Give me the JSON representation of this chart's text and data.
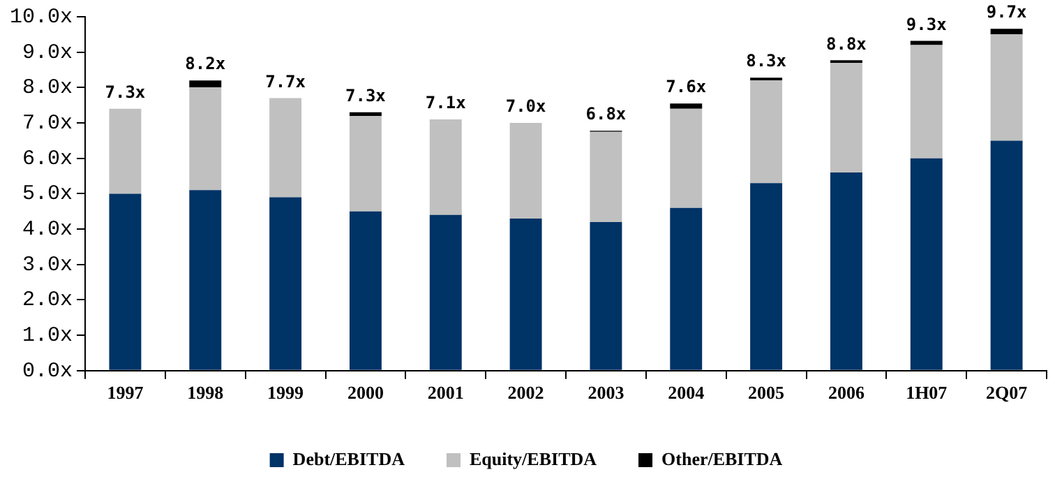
{
  "chart_data": {
    "type": "bar",
    "stacked": true,
    "categories": [
      "1997",
      "1998",
      "1999",
      "2000",
      "2001",
      "2002",
      "2003",
      "2004",
      "2005",
      "2006",
      "1H07",
      "2Q07"
    ],
    "series": [
      {
        "name": "Debt/EBITDA",
        "color": "#003366",
        "values": [
          5.0,
          5.1,
          4.9,
          4.5,
          4.4,
          4.3,
          4.2,
          4.6,
          5.3,
          5.6,
          6.0,
          6.5
        ]
      },
      {
        "name": "Equity/EBITDA",
        "color": "#c0c0c0",
        "values": [
          2.4,
          2.9,
          2.8,
          2.7,
          2.7,
          2.7,
          2.55,
          2.8,
          2.9,
          3.1,
          3.2,
          3.0
        ]
      },
      {
        "name": "Other/EBITDA",
        "color": "#000000",
        "values": [
          0,
          0.2,
          0,
          0.1,
          0,
          0,
          0.03,
          0.15,
          0.08,
          0.07,
          0.12,
          0.16
        ]
      }
    ],
    "totals": [
      "7.3x",
      "8.2x",
      "7.7x",
      "7.3x",
      "7.1x",
      "7.0x",
      "6.8x",
      "7.6x",
      "8.3x",
      "8.8x",
      "9.3x",
      "9.7x"
    ],
    "ylim": [
      0,
      10
    ],
    "yticks": [
      {
        "value": 0,
        "label": "0.0x"
      },
      {
        "value": 1,
        "label": "1.0x"
      },
      {
        "value": 2,
        "label": "2.0x"
      },
      {
        "value": 3,
        "label": "3.0x"
      },
      {
        "value": 4,
        "label": "4.0x"
      },
      {
        "value": 5,
        "label": "5.0x"
      },
      {
        "value": 6,
        "label": "6.0x"
      },
      {
        "value": 7,
        "label": "7.0x"
      },
      {
        "value": 8,
        "label": "8.0x"
      },
      {
        "value": 9,
        "label": "9.0x"
      },
      {
        "value": 10,
        "label": "10.0x"
      }
    ],
    "grid": false,
    "legend": "bottom"
  }
}
